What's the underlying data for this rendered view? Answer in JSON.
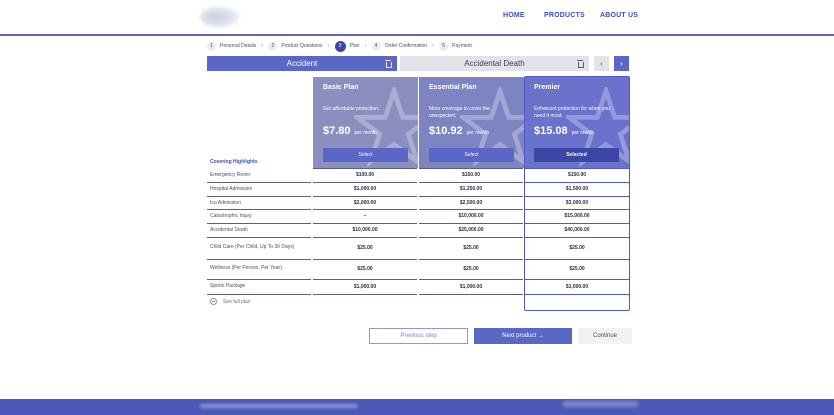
{
  "header": {
    "nav": [
      {
        "label": "HOME"
      },
      {
        "label": "PRODUCTS"
      },
      {
        "label": "ABOUT US"
      }
    ]
  },
  "stepper": {
    "steps": [
      {
        "num": "1",
        "label": "Personal Details"
      },
      {
        "num": "2",
        "label": "Product Questions"
      },
      {
        "num": "3",
        "label": "Plan",
        "active": true
      },
      {
        "num": "4",
        "label": "Order Confirmation"
      },
      {
        "num": "5",
        "label": "Payment"
      }
    ]
  },
  "tabs": {
    "active": "Accident",
    "inactive": "Accidental Death",
    "prev_symbol": "‹",
    "next_symbol": "›"
  },
  "plans": [
    {
      "name": "Basic Plan",
      "desc": "Get affordable protection.",
      "price": "$7.80",
      "unit": "per month",
      "button": "Select"
    },
    {
      "name": "Essential Plan",
      "desc": "More coverage to cover the unexpected.",
      "price": "$10.92",
      "unit": "per month",
      "button": "Select"
    },
    {
      "name": "Premier",
      "desc": "Enhanced protection for when you need it most.",
      "price": "$15.08",
      "unit": "per month",
      "button": "Selected"
    }
  ],
  "table": {
    "heading": "Covering Highlights",
    "rows": [
      {
        "label": "Emergency Room",
        "values": [
          "$100.00",
          "$150.00",
          "$150.00"
        ]
      },
      {
        "label": "Hospital Admission",
        "values": [
          "$1,000.00",
          "$1,250.00",
          "$1,500.00"
        ]
      },
      {
        "label": "Icu Admission",
        "values": [
          "$2,000.00",
          "$2,500.00",
          "$3,000.00"
        ]
      },
      {
        "label": "Catastrophic Injury",
        "values": [
          "–",
          "$10,000.00",
          "$15,000.00"
        ]
      },
      {
        "label": "Accidental Death",
        "values": [
          "$10,000.00",
          "$25,000.00",
          "$40,000.00"
        ]
      },
      {
        "label": "Child Care (Per Child, Up To 30 Days)",
        "values": [
          "$25.00",
          "$25.00",
          "$25.00"
        ]
      },
      {
        "label": "Wellness (Per Person, Per Year)",
        "values": [
          "$25.00",
          "$25.00",
          "$25.00"
        ]
      },
      {
        "label": "Sports Package",
        "values": [
          "$1,000.00",
          "$1,000.00",
          "$1,000.00"
        ]
      }
    ],
    "see_full": "See full plan"
  },
  "actions": {
    "previous": "Previous step",
    "next": "Next product →",
    "continue": "Continue"
  },
  "colors": {
    "accent": "#5a67c7",
    "accent_dark": "#3b46a6",
    "link": "#3b4fc1",
    "footer": "#4c58b8"
  }
}
